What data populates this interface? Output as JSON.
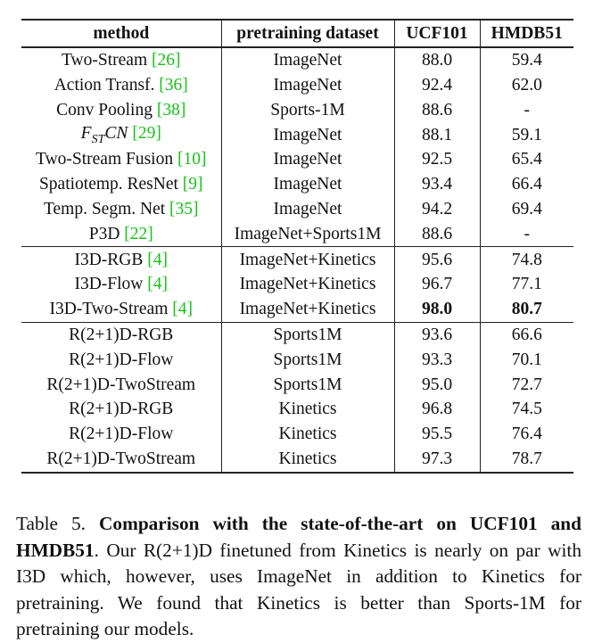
{
  "table": {
    "headers": [
      "method",
      "pretraining dataset",
      "UCF101",
      "HMDB51"
    ],
    "groups": [
      [
        {
          "method": "Two-Stream",
          "ref": "26",
          "dataset": "ImageNet",
          "ucf": "88.0",
          "hmdb": "59.4"
        },
        {
          "method": "Action Transf.",
          "ref": "36",
          "dataset": "ImageNet",
          "ucf": "92.4",
          "hmdb": "62.0"
        },
        {
          "method": "Conv Pooling",
          "ref": "38",
          "dataset": "Sports-1M",
          "ucf": "88.6",
          "hmdb": "-"
        },
        {
          "method_math": {
            "base": "F",
            "sub": "ST",
            "rest": "CN"
          },
          "ref": "29",
          "dataset": "ImageNet",
          "ucf": "88.1",
          "hmdb": "59.1"
        },
        {
          "method": "Two-Stream Fusion",
          "ref": "10",
          "dataset": "ImageNet",
          "ucf": "92.5",
          "hmdb": "65.4"
        },
        {
          "method": "Spatiotemp. ResNet",
          "ref": "9",
          "dataset": "ImageNet",
          "ucf": "93.4",
          "hmdb": "66.4"
        },
        {
          "method": "Temp. Segm. Net",
          "ref": "35",
          "dataset": "ImageNet",
          "ucf": "94.2",
          "hmdb": "69.4"
        },
        {
          "method": "P3D",
          "ref": "22",
          "dataset": "ImageNet+Sports1M",
          "ucf": "88.6",
          "hmdb": "-"
        }
      ],
      [
        {
          "method": "I3D-RGB",
          "ref": "4",
          "dataset": "ImageNet+Kinetics",
          "ucf": "95.6",
          "hmdb": "74.8"
        },
        {
          "method": "I3D-Flow",
          "ref": "4",
          "dataset": "ImageNet+Kinetics",
          "ucf": "96.7",
          "hmdb": "77.1"
        },
        {
          "method": "I3D-Two-Stream",
          "ref": "4",
          "dataset": "ImageNet+Kinetics",
          "ucf": "98.0",
          "hmdb": "80.7",
          "bold": true
        }
      ],
      [
        {
          "method": "R(2+1)D-RGB",
          "dataset": "Sports1M",
          "ucf": "93.6",
          "hmdb": "66.6"
        },
        {
          "method": "R(2+1)D-Flow",
          "dataset": "Sports1M",
          "ucf": "93.3",
          "hmdb": "70.1"
        },
        {
          "method": "R(2+1)D-TwoStream",
          "dataset": "Sports1M",
          "ucf": "95.0",
          "hmdb": "72.7"
        },
        {
          "method": "R(2+1)D-RGB",
          "dataset": "Kinetics",
          "ucf": "96.8",
          "hmdb": "74.5"
        },
        {
          "method": "R(2+1)D-Flow",
          "dataset": "Kinetics",
          "ucf": "95.5",
          "hmdb": "76.4"
        },
        {
          "method": "R(2+1)D-TwoStream",
          "dataset": "Kinetics",
          "ucf": "97.3",
          "hmdb": "78.7"
        }
      ]
    ]
  },
  "caption": {
    "label": "Table 5.",
    "bold_text": "Comparison with the state-of-the-art on UCF101 and HMDB51",
    "text": ". Our R(2+1)D finetuned from Kinetics is nearly on par with I3D which, however, uses ImageNet in addition to Kinetics for pretraining. We found that Kinetics is better than Sports-1M for pretraining our models."
  },
  "colors": {
    "citation": "#19c219",
    "text": "#111111"
  }
}
